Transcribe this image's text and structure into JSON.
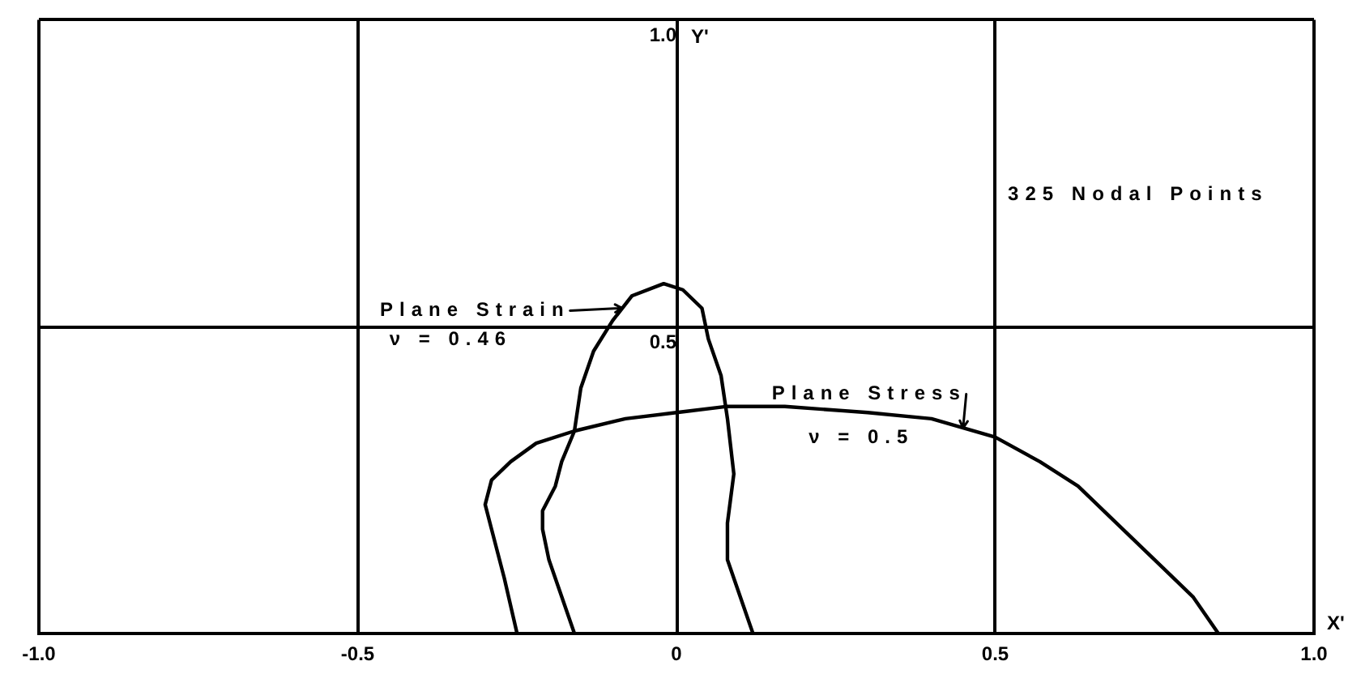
{
  "chart_data": {
    "type": "line",
    "xlabel": "X'",
    "ylabel": "Y'",
    "annotations": [
      {
        "text": "Plane Strain",
        "x": -0.09,
        "y": 0.53
      },
      "ν = 0.46",
      {
        "text": "Plane Stress",
        "x": 0.45,
        "y": 0.34
      },
      "ν = 0.5",
      "325 Nodal Points"
    ],
    "series": [
      {
        "color": "#000000",
        "x": [
          -0.16,
          -0.18,
          -0.2,
          -0.21,
          -0.21,
          -0.19,
          -0.18,
          -0.16,
          -0.15,
          -0.13,
          -0.1,
          -0.07,
          -0.02,
          0.01,
          0.04,
          0.05,
          0.07,
          0.08,
          0.09,
          0.08,
          0.08,
          0.1,
          0.12
        ],
        "values": [
          0,
          0.06,
          0.12,
          0.17,
          0.2,
          0.24,
          0.28,
          0.33,
          0.4,
          0.46,
          0.51,
          0.55,
          0.57,
          0.56,
          0.53,
          0.48,
          0.42,
          0.35,
          0.26,
          0.18,
          0.12,
          0.06,
          0
        ]
      },
      {
        "color": "#000000",
        "x": [
          -0.25,
          -0.27,
          -0.29,
          -0.3,
          -0.29,
          -0.26,
          -0.22,
          -0.16,
          -0.08,
          0,
          0.08,
          0.17,
          0.3,
          0.4,
          0.5,
          0.57,
          0.63,
          0.69,
          0.76,
          0.81,
          0.85
        ],
        "values": [
          0,
          0.09,
          0.17,
          0.21,
          0.25,
          0.28,
          0.31,
          0.33,
          0.35,
          0.36,
          0.37,
          0.37,
          0.36,
          0.35,
          0.32,
          0.28,
          0.24,
          0.18,
          0.11,
          0.06,
          0
        ]
      }
    ],
    "xlim": [
      -1,
      1
    ],
    "ylim": [
      0,
      1
    ],
    "xticks": [
      {
        "value": -1,
        "label": "-1.0"
      },
      -0.5,
      0,
      0.5,
      {
        "value": 1,
        "label": "1.0"
      }
    ],
    "yticks": [
      {
        "value": 0,
        "label": null
      },
      0.5,
      {
        "value": 1,
        "label": "1.0"
      }
    ],
    "grid": true,
    "marker": "none"
  }
}
